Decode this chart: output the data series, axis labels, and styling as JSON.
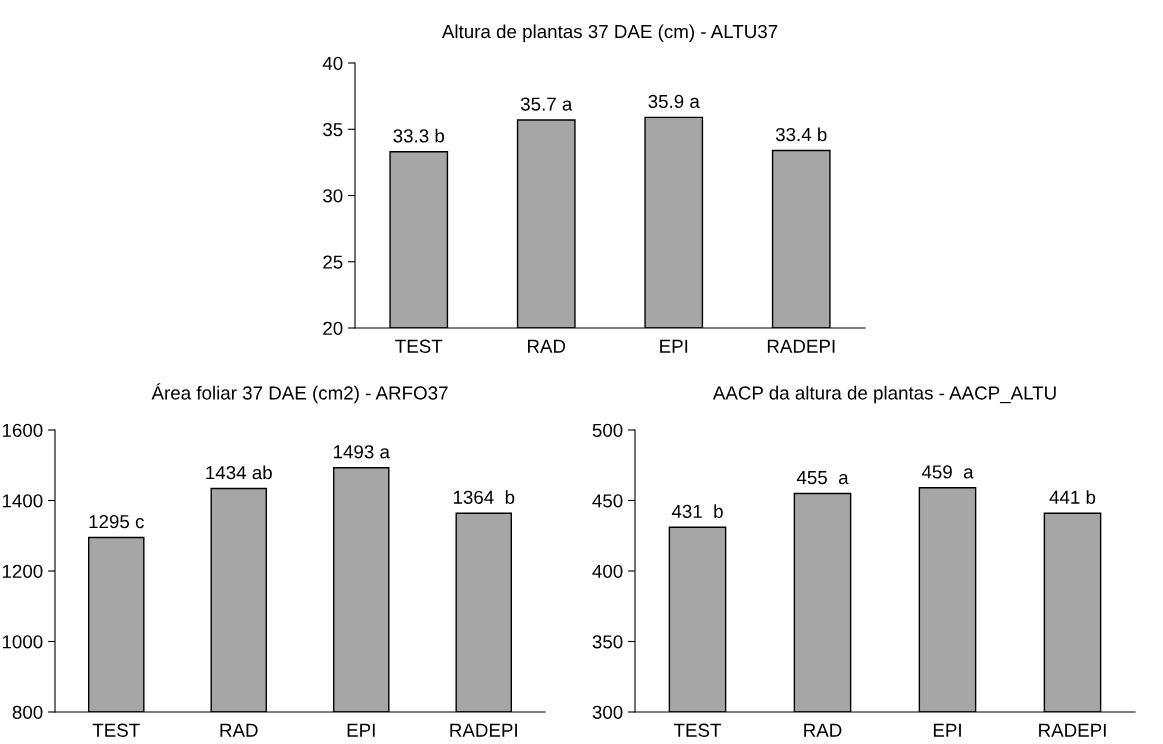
{
  "chart_data": [
    {
      "type": "bar",
      "title": "Altura de plantas 37 DAE (cm) - ALTU37",
      "categories": [
        "TEST",
        "RAD",
        "EPI",
        "RADEPI"
      ],
      "values": [
        33.3,
        35.7,
        35.9,
        33.4
      ],
      "value_labels": [
        "33.3 b",
        "35.7 a",
        "35.9 a",
        "33.4 b"
      ],
      "color": "#a6a6a6",
      "ylim": [
        20,
        40
      ],
      "yticks": [
        20,
        25,
        30,
        35,
        40
      ],
      "grid": false,
      "legend": false
    },
    {
      "type": "bar",
      "title": "Área foliar 37 DAE (cm2) - ARFO37",
      "categories": [
        "TEST",
        "RAD",
        "EPI",
        "RADEPI"
      ],
      "values": [
        1295,
        1434,
        1493,
        1364
      ],
      "value_labels": [
        "1295 c",
        "1434 ab",
        "1493 a",
        "1364  b"
      ],
      "color": "#a6a6a6",
      "ylim": [
        800,
        1600
      ],
      "yticks": [
        800,
        1000,
        1200,
        1400,
        1600
      ],
      "grid": false,
      "legend": false
    },
    {
      "type": "bar",
      "title": "AACP da altura de plantas - AACP_ALTU",
      "categories": [
        "TEST",
        "RAD",
        "EPI",
        "RADEPI"
      ],
      "values": [
        431,
        455,
        459,
        441
      ],
      "value_labels": [
        "431  b",
        "455  a",
        "459  a",
        "441 b"
      ],
      "color": "#a6a6a6",
      "ylim": [
        300,
        500
      ],
      "yticks": [
        300,
        350,
        400,
        450,
        500
      ],
      "grid": false,
      "legend": false
    }
  ]
}
